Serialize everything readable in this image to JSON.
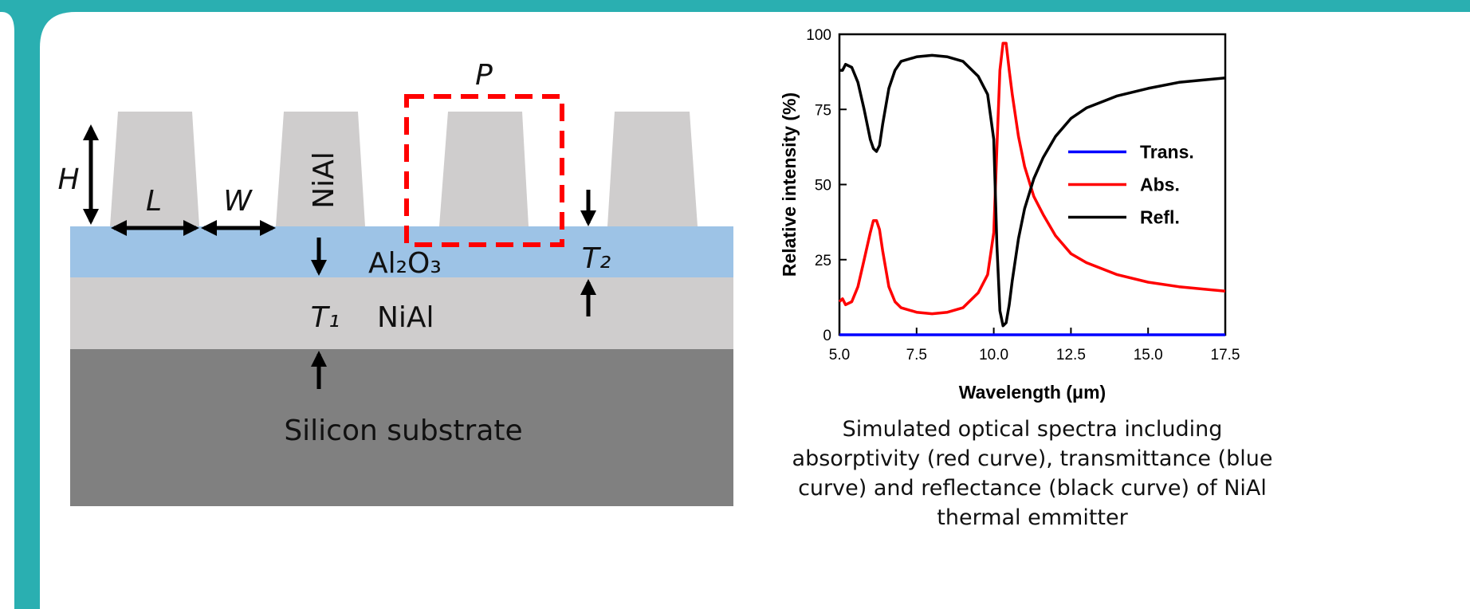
{
  "diagram": {
    "period": "P",
    "height": "H",
    "length": "L",
    "width": "W",
    "pillar_material": "NiAl",
    "spacer": "Al₂O₃",
    "spacer_thickness": "T₂",
    "layer_thickness": "T₁",
    "layer_material": "NiAl",
    "substrate": "Silicon substrate"
  },
  "chart_data": {
    "type": "line",
    "xlabel": "Wavelength (μm)",
    "ylabel": "Relative intensity (%)",
    "x": [
      5.0,
      5.1,
      5.2,
      5.4,
      5.6,
      5.8,
      6.0,
      6.1,
      6.2,
      6.3,
      6.4,
      6.6,
      6.8,
      7.0,
      7.5,
      8.0,
      8.5,
      9.0,
      9.5,
      9.8,
      10.0,
      10.1,
      10.2,
      10.3,
      10.4,
      10.5,
      10.6,
      10.8,
      11.0,
      11.3,
      11.6,
      12.0,
      12.5,
      13.0,
      14.0,
      15.0,
      16.0,
      17.5
    ],
    "series": [
      {
        "name": "Trans.",
        "color": "#0000ff",
        "values": [
          0,
          0,
          0,
          0,
          0,
          0,
          0,
          0,
          0,
          0,
          0,
          0,
          0,
          0,
          0,
          0,
          0,
          0,
          0,
          0,
          0,
          0,
          0,
          0,
          0,
          0,
          0,
          0,
          0,
          0,
          0,
          0,
          0,
          0,
          0,
          0,
          0,
          0
        ]
      },
      {
        "name": "Abs.",
        "color": "#ff0000",
        "values": [
          11,
          12,
          10,
          11,
          16,
          25,
          34,
          38,
          38,
          35,
          28,
          16,
          11,
          9,
          7.5,
          7,
          7.5,
          9,
          14,
          20,
          34,
          62,
          88,
          97,
          97,
          88,
          80,
          66,
          56,
          46,
          40,
          33,
          27,
          24,
          20,
          17.5,
          16,
          14.5
        ]
      },
      {
        "name": "Refl.",
        "color": "#000000",
        "values": [
          88,
          88,
          90,
          89,
          84,
          75,
          65,
          62,
          61,
          63,
          70,
          82,
          88,
          91,
          92.5,
          93,
          92.5,
          91,
          86,
          80,
          65,
          30,
          8,
          3,
          4,
          10,
          18,
          32,
          42,
          52,
          59,
          66,
          72,
          75.5,
          79.5,
          82,
          84,
          85.5
        ]
      }
    ],
    "xlim": [
      5,
      17.5
    ],
    "xticks": [
      {
        "value": 5,
        "label": "5.0"
      },
      {
        "value": 7.5,
        "label": "7.5"
      },
      {
        "value": 10,
        "label": "10.0"
      },
      {
        "value": 12.5,
        "label": "12.5"
      },
      {
        "value": 15,
        "label": "15.0"
      },
      {
        "value": 17.5,
        "label": "17.5"
      }
    ],
    "ylim": [
      0,
      100
    ],
    "yticks": [
      0,
      25,
      50,
      75,
      100
    ],
    "legend": "center right"
  },
  "caption": [
    "Simulated optical spectra including",
    "absorptivity (red curve), transmittance (blue",
    "curve) and reflectance (black curve) of NiAl",
    "thermal emmitter"
  ]
}
